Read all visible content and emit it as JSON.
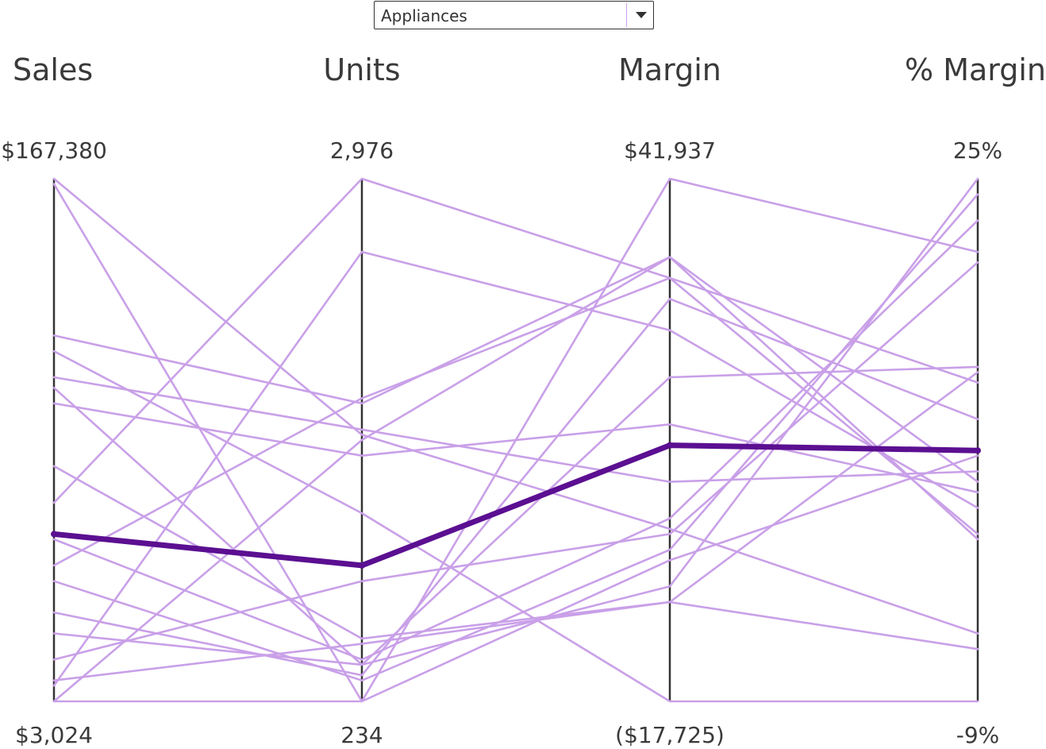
{
  "filter": {
    "selected": "Appliances"
  },
  "chart_data": {
    "type": "line",
    "subtype": "parallel-coordinates",
    "axes": [
      {
        "name": "Sales",
        "max_label": "$167,380",
        "min_label": "$3,024",
        "min": 3024,
        "max": 167380
      },
      {
        "name": "Units",
        "max_label": "2,976",
        "min_label": "234",
        "min": 234,
        "max": 2976
      },
      {
        "name": "Margin",
        "max_label": "$41,937",
        "min_label": "($17,725)",
        "min": -17725,
        "max": 41937
      },
      {
        "name": "% Margin",
        "max_label": "25%",
        "min_label": "-9%",
        "min": -9,
        "max": 25
      }
    ],
    "grid": false,
    "legend": "none",
    "colors": {
      "series": "#c9a0e8",
      "highlight": "#5b0f91",
      "axis": "#333333"
    },
    "highlighted_index": 0,
    "series": [
      {
        "values": [
          0.32,
          0.26,
          0.49,
          0.48
        ]
      },
      {
        "values": [
          0.0,
          0.0,
          1.0,
          0.86
        ]
      },
      {
        "values": [
          1.0,
          0.51,
          0.33,
          0.13
        ]
      },
      {
        "values": [
          0.99,
          0.0,
          0.27,
          0.47
        ]
      },
      {
        "values": [
          0.62,
          0.52,
          0.42,
          0.44
        ]
      },
      {
        "values": [
          0.67,
          0.36,
          0.0,
          0.0
        ]
      },
      {
        "values": [
          0.57,
          0.47,
          0.53,
          0.4
        ]
      },
      {
        "values": [
          0.45,
          0.12,
          0.19,
          0.1
        ]
      },
      {
        "values": [
          0.31,
          0.08,
          0.35,
          0.92
        ]
      },
      {
        "values": [
          0.26,
          0.58,
          0.81,
          0.61
        ]
      },
      {
        "values": [
          0.23,
          0.04,
          0.29,
          0.97
        ]
      },
      {
        "values": [
          0.13,
          0.07,
          0.22,
          1.0
        ]
      },
      {
        "values": [
          0.08,
          0.23,
          0.32,
          0.84
        ]
      },
      {
        "values": [
          0.03,
          0.86,
          0.71,
          0.37
        ]
      },
      {
        "values": [
          0.04,
          0.11,
          0.19,
          0.63
        ]
      },
      {
        "values": [
          0.17,
          0.05,
          0.77,
          0.54
        ]
      },
      {
        "values": [
          0.6,
          0.07,
          0.62,
          0.64
        ]
      },
      {
        "values": [
          0.38,
          1.0,
          0.81,
          0.32
        ]
      },
      {
        "values": [
          0.7,
          0.57,
          0.85,
          0.31
        ]
      },
      {
        "values": [
          0.0,
          0.5,
          0.85,
          0.42
        ]
      }
    ]
  }
}
